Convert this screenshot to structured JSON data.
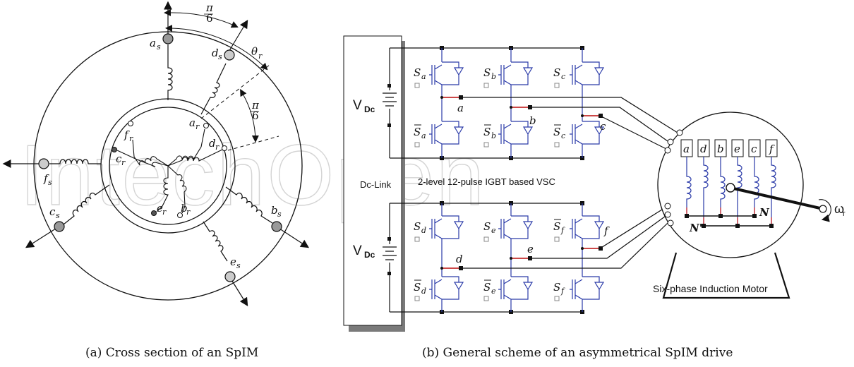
{
  "captions": {
    "a": "(a)  Cross section of an SpIM",
    "b": "(b)  General scheme of an asymmetrical SpIM drive"
  },
  "watermark": "IntechOpen",
  "cross_section": {
    "angle_top": "π",
    "angle_top_den": "6",
    "angle_mid": "π",
    "angle_mid_den": "6",
    "theta_r": "θ",
    "theta_sub": "r",
    "stator_terminals": [
      {
        "letter": "a",
        "sub": "s"
      },
      {
        "letter": "d",
        "sub": "s"
      },
      {
        "letter": "f",
        "sub": "s"
      },
      {
        "letter": "c",
        "sub": "s"
      },
      {
        "letter": "b",
        "sub": "s"
      },
      {
        "letter": "e",
        "sub": "s"
      }
    ],
    "rotor_terminals": [
      {
        "letter": "a",
        "sub": "r"
      },
      {
        "letter": "d",
        "sub": "r"
      },
      {
        "letter": "f",
        "sub": "r"
      },
      {
        "letter": "c",
        "sub": "r"
      },
      {
        "letter": "e",
        "sub": "r"
      },
      {
        "letter": "b",
        "sub": "r"
      }
    ]
  },
  "drive": {
    "vdc_top": "V",
    "vdc_top_sub": "Dc",
    "vdc_bottom": "V",
    "vdc_bottom_sub": "Dc",
    "dc_link": "Dc-Link",
    "vsc_label": "2-level 12-pulse IGBT based VSC",
    "motor_label": "Six-phase Induction Motor",
    "omega": "ω",
    "omega_sub": "r",
    "switches": [
      {
        "letter": "S",
        "sub": "a",
        "bar": false
      },
      {
        "letter": "S",
        "sub": "b",
        "bar": false
      },
      {
        "letter": "S",
        "sub": "c",
        "bar": false
      },
      {
        "letter": "S",
        "sub": "a",
        "bar": true
      },
      {
        "letter": "S",
        "sub": "b",
        "bar": true
      },
      {
        "letter": "S",
        "sub": "c",
        "bar": true
      },
      {
        "letter": "S",
        "sub": "d",
        "bar": false
      },
      {
        "letter": "S",
        "sub": "e",
        "bar": false
      },
      {
        "letter": "S",
        "sub": "f",
        "bar": true
      },
      {
        "letter": "S",
        "sub": "d",
        "bar": true
      },
      {
        "letter": "S",
        "sub": "e",
        "bar": true
      },
      {
        "letter": "S",
        "sub": "f",
        "bar": false
      }
    ],
    "leg_labels": [
      "a",
      "b",
      "c",
      "d",
      "e",
      "f"
    ],
    "motor_phases": [
      "a",
      "d",
      "b",
      "e",
      "c",
      "f"
    ],
    "neutral_1": "N'",
    "neutral_2": "N"
  },
  "colors": {
    "igbt": "#2a3aa8",
    "red_wire": "#d02020",
    "terminal_gray": "#999999"
  }
}
